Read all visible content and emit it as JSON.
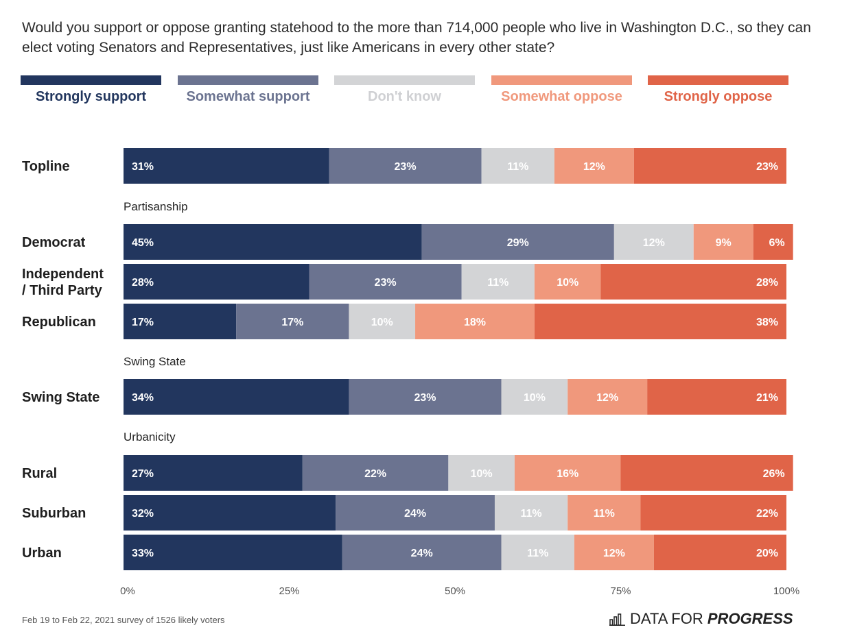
{
  "title": "Would you support or oppose granting statehood to the more than 714,000 people who live in Washington D.C., so they can elect voting Senators and Representatives, just like Americans in every other state?",
  "source": "Feb 19 to Feb 22, 2021 survey of 1526 likely voters",
  "brand": {
    "prefix": "DATA FOR",
    "emph": "PROGRESS",
    "icon": "bar-chart-icon"
  },
  "chart_data": {
    "type": "bar",
    "orientation": "horizontal",
    "stacked": true,
    "title": "Would you support or oppose granting statehood to the more than 714,000 people who live in Washington D.C., so they can elect voting Senators and Representatives, just like Americans in every other state?",
    "xlim": [
      0,
      100
    ],
    "xticks": [
      "0%",
      "25%",
      "50%",
      "75%",
      "100%"
    ],
    "legend_position": "top",
    "series": [
      {
        "name": "Strongly support",
        "color": "#22365e",
        "label_color": "#22365e"
      },
      {
        "name": "Somewhat support",
        "color": "#6b7390",
        "label_color": "#6b7390"
      },
      {
        "name": "Don't know",
        "color": "#d3d4d6",
        "label_color": "#cfd0d3"
      },
      {
        "name": "Somewhat oppose",
        "color": "#f0987c",
        "label_color": "#f0987c"
      },
      {
        "name": "Strongly oppose",
        "color": "#e06448",
        "label_color": "#e06448"
      }
    ],
    "rows": [
      {
        "label": "Topline",
        "values": [
          31,
          23,
          11,
          12,
          23
        ]
      },
      {
        "section": "Partisanship"
      },
      {
        "label": "Democrat",
        "values": [
          45,
          29,
          12,
          9,
          6
        ]
      },
      {
        "label": "Independent / Third Party",
        "lines": [
          "Independent",
          "/ Third Party"
        ],
        "values": [
          28,
          23,
          11,
          10,
          28
        ]
      },
      {
        "label": "Republican",
        "values": [
          17,
          17,
          10,
          18,
          38
        ]
      },
      {
        "section": "Swing State"
      },
      {
        "label": "Swing State",
        "values": [
          34,
          23,
          10,
          12,
          21
        ]
      },
      {
        "section": "Urbanicity"
      },
      {
        "label": "Rural",
        "values": [
          27,
          22,
          10,
          16,
          26
        ]
      },
      {
        "label": "Suburban",
        "values": [
          32,
          24,
          11,
          11,
          22
        ]
      },
      {
        "label": "Urban",
        "values": [
          33,
          24,
          11,
          12,
          20
        ]
      }
    ]
  }
}
